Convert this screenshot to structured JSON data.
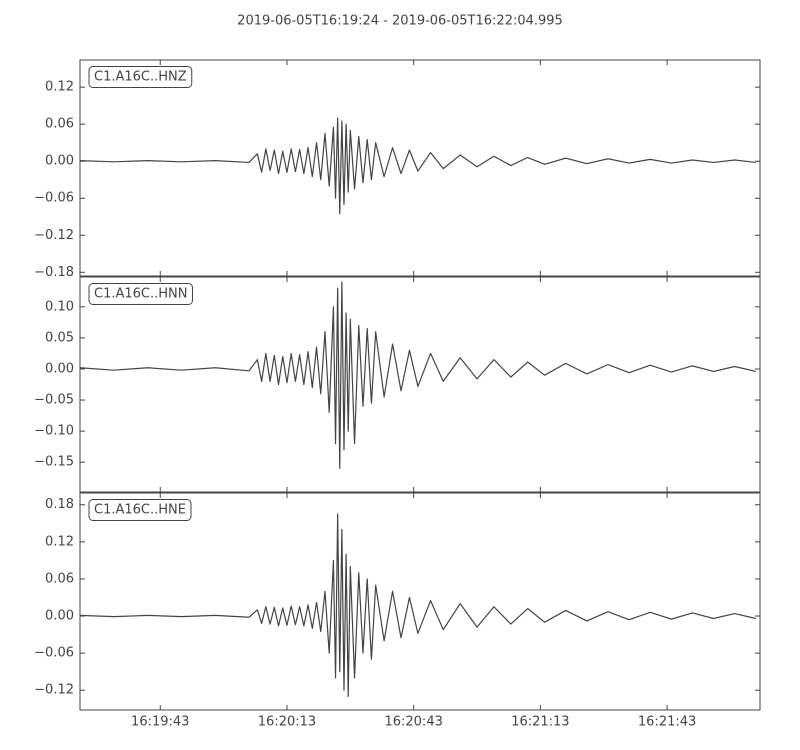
{
  "title": "2019-06-05T16:19:24  -  2019-06-05T16:22:04.995",
  "chart_data": [
    {
      "type": "line",
      "label": "C1.A16C..HNZ",
      "color": "#444444",
      "xlim": [
        0,
        160.995
      ],
      "ylim": [
        -0.186,
        0.164
      ],
      "yticks": [
        0.12,
        0.06,
        {
          "value": 0,
          "label": "0.00"
        },
        {
          "value": -0.06,
          "label": "−0.06"
        },
        {
          "value": -0.12,
          "label": "−0.12"
        },
        {
          "value": -0.18,
          "label": "−0.18"
        }
      ],
      "x": [
        0,
        8,
        16,
        24,
        32,
        40,
        42,
        43,
        44,
        45,
        46,
        47,
        48,
        49,
        50,
        51,
        52,
        53,
        54,
        55,
        56,
        57,
        58,
        59,
        60,
        60.5,
        61,
        61.5,
        62,
        62.5,
        63,
        63.5,
        64,
        65,
        66,
        67,
        68,
        69,
        70,
        72,
        74,
        76,
        78,
        80,
        83,
        86,
        90,
        94,
        98,
        102,
        106,
        110,
        115,
        120,
        125,
        130,
        135,
        140,
        145,
        150,
        155,
        160
      ],
      "values": [
        0.001,
        -0.001,
        0.001,
        -0.001,
        0.001,
        -0.002,
        0.012,
        -0.018,
        0.02,
        -0.015,
        0.018,
        -0.02,
        0.016,
        -0.018,
        0.02,
        -0.017,
        0.019,
        -0.02,
        0.022,
        -0.025,
        0.03,
        -0.03,
        0.045,
        -0.04,
        0.055,
        -0.06,
        0.07,
        -0.085,
        0.065,
        -0.07,
        0.06,
        -0.05,
        0.05,
        -0.045,
        0.04,
        -0.035,
        0.035,
        -0.03,
        0.03,
        -0.025,
        0.022,
        -0.02,
        0.018,
        -0.016,
        0.014,
        -0.012,
        0.01,
        -0.009,
        0.008,
        -0.007,
        0.006,
        -0.005,
        0.005,
        -0.004,
        0.004,
        -0.003,
        0.003,
        -0.003,
        0.002,
        -0.002,
        0.002,
        -0.002
      ]
    },
    {
      "type": "line",
      "label": "C1.A16C..HNN",
      "color": "#444444",
      "xlim": [
        0,
        160.995
      ],
      "ylim": [
        -0.198,
        0.148
      ],
      "yticks": [
        {
          "value": 0.1,
          "label": "0.10"
        },
        0.05,
        {
          "value": 0,
          "label": "0.00"
        },
        {
          "value": -0.05,
          "label": "−0.05"
        },
        {
          "value": -0.1,
          "label": "−0.10"
        },
        {
          "value": -0.15,
          "label": "−0.15"
        }
      ],
      "x": [
        0,
        8,
        16,
        24,
        32,
        40,
        42,
        43,
        44,
        45,
        46,
        47,
        48,
        49,
        50,
        51,
        52,
        53,
        54,
        55,
        56,
        57,
        58,
        59,
        60,
        60.5,
        61,
        61.5,
        62,
        62.5,
        63,
        63.5,
        64,
        65,
        66,
        67,
        68,
        69,
        70,
        72,
        74,
        76,
        78,
        80,
        83,
        86,
        90,
        94,
        98,
        102,
        106,
        110,
        115,
        120,
        125,
        130,
        135,
        140,
        145,
        150,
        155,
        160
      ],
      "values": [
        0.002,
        -0.002,
        0.002,
        -0.002,
        0.002,
        -0.003,
        0.015,
        -0.02,
        0.025,
        -0.02,
        0.022,
        -0.025,
        0.02,
        -0.022,
        0.025,
        -0.02,
        0.023,
        -0.025,
        0.028,
        -0.03,
        0.035,
        -0.04,
        0.06,
        -0.07,
        0.1,
        -0.12,
        0.13,
        -0.16,
        0.14,
        -0.13,
        0.09,
        -0.1,
        0.08,
        -0.12,
        0.07,
        -0.06,
        0.065,
        -0.055,
        0.06,
        -0.045,
        0.04,
        -0.035,
        0.03,
        -0.028,
        0.025,
        -0.02,
        0.018,
        -0.016,
        0.015,
        -0.013,
        0.011,
        -0.01,
        0.009,
        -0.008,
        0.007,
        -0.006,
        0.006,
        -0.005,
        0.005,
        -0.004,
        0.004,
        -0.004
      ]
    },
    {
      "type": "line",
      "label": "C1.A16C..HNE",
      "color": "#444444",
      "xlim": [
        0,
        160.995
      ],
      "ylim": [
        -0.152,
        0.199
      ],
      "yticks": [
        0.18,
        0.12,
        0.06,
        {
          "value": 0,
          "label": "0.00"
        },
        {
          "value": -0.06,
          "label": "−0.06"
        },
        {
          "value": -0.12,
          "label": "−0.12"
        }
      ],
      "xticks": [
        {
          "value": 19,
          "label": "16:19:43"
        },
        {
          "value": 49,
          "label": "16:20:13"
        },
        {
          "value": 79,
          "label": "16:20:43"
        },
        {
          "value": 109,
          "label": "16:21:13"
        },
        {
          "value": 139,
          "label": "16:21:43"
        }
      ],
      "x": [
        0,
        8,
        16,
        24,
        32,
        40,
        42,
        43,
        44,
        45,
        46,
        47,
        48,
        49,
        50,
        51,
        52,
        53,
        54,
        55,
        56,
        57,
        58,
        59,
        60,
        60.5,
        61,
        61.5,
        62,
        62.5,
        63,
        63.5,
        64,
        65,
        66,
        67,
        68,
        69,
        70,
        72,
        74,
        76,
        78,
        80,
        83,
        86,
        90,
        94,
        98,
        102,
        106,
        110,
        115,
        120,
        125,
        130,
        135,
        140,
        145,
        150,
        155,
        160
      ],
      "values": [
        0.001,
        -0.001,
        0.001,
        -0.001,
        0.001,
        -0.002,
        0.01,
        -0.012,
        0.015,
        -0.013,
        0.014,
        -0.016,
        0.013,
        -0.015,
        0.016,
        -0.014,
        0.015,
        -0.016,
        0.018,
        -0.02,
        0.022,
        -0.025,
        0.04,
        -0.06,
        0.09,
        -0.1,
        0.165,
        -0.09,
        0.14,
        -0.12,
        0.1,
        -0.13,
        0.08,
        -0.1,
        0.07,
        -0.06,
        0.06,
        -0.07,
        0.05,
        -0.04,
        0.04,
        -0.035,
        0.03,
        -0.028,
        0.025,
        -0.022,
        0.02,
        -0.018,
        0.015,
        -0.013,
        0.012,
        -0.01,
        0.009,
        -0.008,
        0.007,
        -0.006,
        0.006,
        -0.005,
        0.005,
        -0.004,
        0.004,
        -0.004
      ]
    }
  ]
}
